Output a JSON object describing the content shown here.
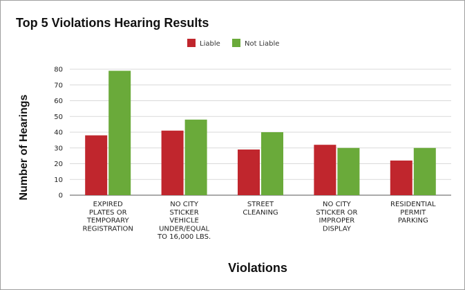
{
  "chart_data": {
    "type": "bar",
    "title": "Top 5 Violations Hearing Results",
    "xlabel": "Violations",
    "ylabel": "Number of Hearings",
    "ylim": [
      0,
      80
    ],
    "yticks": [
      0,
      10,
      20,
      30,
      40,
      50,
      60,
      70,
      80
    ],
    "grid": true,
    "legend_position": "top-center",
    "categories": [
      [
        "EXPIRED",
        "PLATES OR",
        "TEMPORARY",
        "REGISTRATION"
      ],
      [
        "NO CITY",
        "STICKER",
        "VEHICLE",
        "UNDER/EQUAL",
        "TO 16,000 LBS."
      ],
      [
        "STREET",
        "CLEANING"
      ],
      [
        "NO CITY",
        "STICKER OR",
        "IMPROPER",
        "DISPLAY"
      ],
      [
        "RESIDENTIAL",
        "PERMIT",
        "PARKING"
      ]
    ],
    "series": [
      {
        "name": "Liable",
        "color": "#c0262d",
        "values": [
          38,
          41,
          29,
          32,
          22
        ]
      },
      {
        "name": "Not Liable",
        "color": "#6aaa3a",
        "values": [
          79,
          48,
          40,
          30,
          30
        ]
      }
    ]
  }
}
